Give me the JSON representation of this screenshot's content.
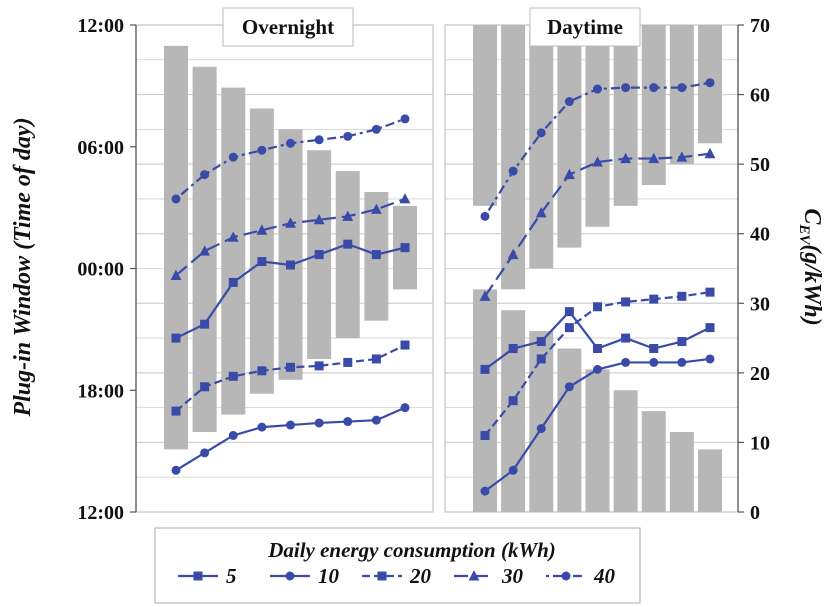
{
  "chart_data": {
    "type": "line",
    "y_left_label": "Plug-in Window (Time of day)",
    "y_left_ticks": [
      "12:00",
      "18:00",
      "00:00",
      "06:00",
      "12:00"
    ],
    "y_right_label_main": "C",
    "y_right_label_sub": "EV",
    "y_right_label_rest": "(g/kWh)",
    "y_right_ticks": [
      0,
      10,
      20,
      30,
      40,
      50,
      60,
      70
    ],
    "y_right_range": [
      0,
      70
    ],
    "legend_title": "Daily energy consumption (kWh)",
    "colors": {
      "series": "#3a4aa8",
      "bar": "#b7b7b7",
      "grid": "#cfcfcf",
      "panel_border": "#cfcfcf"
    },
    "panels": [
      {
        "title": "Overnight",
        "bars": [
          {
            "bottom": 9.0,
            "top": 67.0
          },
          {
            "bottom": 11.5,
            "top": 64.0
          },
          {
            "bottom": 14.0,
            "top": 61.0
          },
          {
            "bottom": 17.0,
            "top": 58.0
          },
          {
            "bottom": 19.0,
            "top": 55.0
          },
          {
            "bottom": 22.0,
            "top": 52.0
          },
          {
            "bottom": 25.0,
            "top": 49.0
          },
          {
            "bottom": 27.5,
            "top": 46.0
          },
          {
            "bottom": 32.0,
            "top": 44.0
          }
        ],
        "series": [
          {
            "name": "5",
            "values": [
              25.0,
              27.0,
              33.0,
              36.0,
              35.5,
              37.0,
              38.5,
              37.0,
              38.0
            ]
          },
          {
            "name": "10",
            "values": [
              6.0,
              8.5,
              11.0,
              12.2,
              12.5,
              12.8,
              13.0,
              13.2,
              15.0
            ]
          },
          {
            "name": "20",
            "values": [
              14.5,
              18.0,
              19.5,
              20.3,
              20.8,
              21.0,
              21.5,
              22.0,
              24.0
            ]
          },
          {
            "name": "30",
            "values": [
              34.0,
              37.5,
              39.5,
              40.5,
              41.5,
              42.0,
              42.5,
              43.5,
              45.0
            ]
          },
          {
            "name": "40",
            "values": [
              45.0,
              48.5,
              51.0,
              52.0,
              53.0,
              53.5,
              54.0,
              55.0,
              56.5
            ]
          }
        ]
      },
      {
        "title": "Daytime",
        "bars": [
          {
            "bottom": 44.0,
            "top": 70.0
          },
          {
            "bottom": 32.0,
            "top": 70.0
          },
          {
            "bottom": 35.0,
            "top": 70.0
          },
          {
            "bottom": 38.0,
            "top": 70.0
          },
          {
            "bottom": 41.0,
            "top": 70.0
          },
          {
            "bottom": 44.0,
            "top": 70.0
          },
          {
            "bottom": 47.0,
            "top": 70.0
          },
          {
            "bottom": 50.0,
            "top": 70.0
          },
          {
            "bottom": 53.0,
            "top": 70.0
          }
        ],
        "bars_lower": [
          {
            "bottom": 0,
            "top": 32.0
          },
          {
            "bottom": 0,
            "top": 29.0
          },
          {
            "bottom": 0,
            "top": 26.0
          },
          {
            "bottom": 0,
            "top": 23.5
          },
          {
            "bottom": 0,
            "top": 20.5
          },
          {
            "bottom": 0,
            "top": 17.5
          },
          {
            "bottom": 0,
            "top": 14.5
          },
          {
            "bottom": 0,
            "top": 11.5
          },
          {
            "bottom": 0,
            "top": 9.0
          }
        ],
        "series": [
          {
            "name": "5",
            "values": [
              20.5,
              23.5,
              24.5,
              28.8,
              23.5,
              25.0,
              23.5,
              24.5,
              26.5
            ]
          },
          {
            "name": "10",
            "values": [
              3.0,
              6.0,
              12.0,
              18.0,
              20.5,
              21.5,
              21.5,
              21.5,
              22.0
            ]
          },
          {
            "name": "20",
            "values": [
              11.0,
              16.0,
              22.0,
              26.5,
              29.5,
              30.2,
              30.6,
              31.0,
              31.6
            ]
          },
          {
            "name": "30",
            "values": [
              31.0,
              37.0,
              43.0,
              48.5,
              50.3,
              50.8,
              50.8,
              51.0,
              51.5
            ]
          },
          {
            "name": "40",
            "values": [
              42.5,
              49.0,
              54.5,
              59.0,
              60.8,
              61.0,
              61.0,
              61.0,
              61.7
            ]
          }
        ]
      }
    ],
    "legend": [
      {
        "name": "5",
        "marker": "square",
        "dash": "solid"
      },
      {
        "name": "10",
        "marker": "circle",
        "dash": "solid"
      },
      {
        "name": "20",
        "marker": "square",
        "dash": "dashed"
      },
      {
        "name": "30",
        "marker": "triangle",
        "dash": "longdash"
      },
      {
        "name": "40",
        "marker": "circle",
        "dash": "dotdash"
      }
    ]
  }
}
